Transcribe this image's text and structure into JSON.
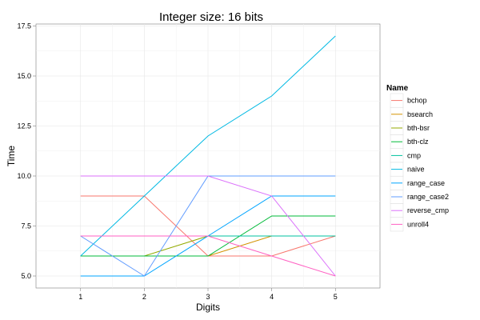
{
  "chart_data": {
    "type": "line",
    "title": "Integer size: 16 bits",
    "xlabel": "Digits",
    "ylabel": "Time",
    "x": [
      1,
      2,
      3,
      4,
      5
    ],
    "xlim": [
      0.3,
      5.7
    ],
    "ylim": [
      4.4,
      17.6
    ],
    "xticks": [
      "1",
      "2",
      "3",
      "4",
      "5"
    ],
    "yticks": [
      5.0,
      7.5,
      10.0,
      12.5,
      15.0,
      17.5
    ],
    "ytick_labels": [
      "5.0",
      "7.5",
      "10.0",
      "12.5",
      "15.0",
      "17.5"
    ],
    "grid": true,
    "legend_placement": "right",
    "legend_title": "Name",
    "series": [
      {
        "name": "bchop",
        "color": "#F8766D",
        "values": [
          9,
          9,
          6,
          6,
          7
        ]
      },
      {
        "name": "bsearch",
        "color": "#D39200",
        "values": [
          6,
          6,
          6,
          7,
          7
        ]
      },
      {
        "name": "bth-bsr",
        "color": "#93AA00",
        "values": [
          6,
          6,
          7,
          7,
          7
        ]
      },
      {
        "name": "bth-clz",
        "color": "#00BA38",
        "values": [
          6,
          6,
          6,
          8,
          8
        ]
      },
      {
        "name": "cmp",
        "color": "#00C19F",
        "values": [
          7,
          7,
          7,
          7,
          7
        ]
      },
      {
        "name": "naive",
        "color": "#00B9E3",
        "values": [
          6,
          9,
          12,
          14,
          17
        ]
      },
      {
        "name": "range_case",
        "color": "#00A5FF",
        "values": [
          5,
          5,
          7,
          9,
          9
        ]
      },
      {
        "name": "range_case2",
        "color": "#619CFF",
        "values": [
          7,
          5,
          10,
          10,
          10
        ]
      },
      {
        "name": "reverse_cmp",
        "color": "#DB72FB",
        "values": [
          10,
          10,
          10,
          9,
          5
        ]
      },
      {
        "name": "unroll4",
        "color": "#FF61C3",
        "values": [
          7,
          7,
          7,
          6,
          5
        ]
      }
    ]
  }
}
